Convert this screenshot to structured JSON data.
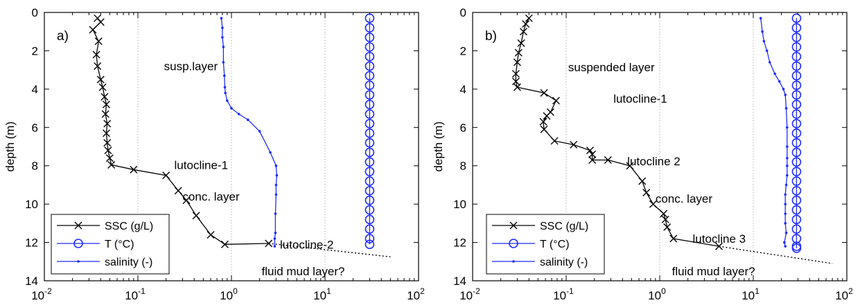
{
  "colors": {
    "ssc": "#000000",
    "temperature": "#1f2bff",
    "salinity": "#1f2bff"
  },
  "x_tick_labels": [
    {
      "base": "10",
      "exp": "-2"
    },
    {
      "base": "10",
      "exp": "-1"
    },
    {
      "base": "10",
      "exp": "0"
    },
    {
      "base": "10",
      "exp": "1"
    },
    {
      "base": "10",
      "exp": "2"
    }
  ],
  "chart_data": [
    {
      "type": "line",
      "panel_label": "a)",
      "ylabel": "depth (m)",
      "x_scale": "log",
      "xlim": [
        0.01,
        100
      ],
      "ylim": [
        0,
        14
      ],
      "y_inverted": true,
      "grid": "x-major-only",
      "legend_position": "bottom-left",
      "y_ticks": [
        0,
        2,
        4,
        6,
        8,
        10,
        12,
        14
      ],
      "series": [
        {
          "name": "SSC (g/L)",
          "marker": "x",
          "color": "#000000",
          "x": [
            0.037,
            0.04,
            0.033,
            0.038,
            0.036,
            0.037,
            0.04,
            0.042,
            0.044,
            0.046,
            0.045,
            0.047,
            0.046,
            0.047,
            0.048,
            0.05,
            0.052,
            0.09,
            0.2,
            0.27,
            0.33,
            0.42,
            0.6,
            0.85,
            2.5
          ],
          "y": [
            0.3,
            0.5,
            0.9,
            1.5,
            2.2,
            2.8,
            3.5,
            3.9,
            4.4,
            4.8,
            5.3,
            5.8,
            6.3,
            6.8,
            7.2,
            7.6,
            7.95,
            8.2,
            8.5,
            9.3,
            9.8,
            10.6,
            11.6,
            12.1,
            12.05
          ]
        },
        {
          "name": "T (°C)",
          "marker": "o",
          "color": "#1f2bff",
          "x": [
            30,
            30,
            30,
            30,
            30,
            30,
            30,
            30,
            30,
            30,
            30,
            30,
            30,
            30,
            30,
            30,
            30,
            30,
            30,
            30,
            30,
            30,
            30,
            30,
            30
          ],
          "y": [
            0.3,
            0.8,
            1.3,
            1.8,
            2.3,
            2.8,
            3.3,
            3.8,
            4.3,
            4.8,
            5.3,
            5.8,
            6.3,
            6.8,
            7.3,
            7.8,
            8.3,
            8.8,
            9.3,
            9.8,
            10.3,
            10.8,
            11.3,
            11.8,
            12.1
          ]
        },
        {
          "name": "salinity (-)",
          "marker": ".",
          "color": "#1f2bff",
          "x": [
            0.78,
            0.8,
            0.8,
            0.82,
            0.82,
            0.84,
            0.85,
            0.86,
            0.9,
            1.0,
            1.2,
            1.5,
            2.0,
            2.6,
            3.0,
            3.05,
            3.0,
            3.0,
            2.95,
            2.95,
            2.9,
            2.9
          ],
          "y": [
            0.3,
            0.8,
            1.3,
            1.8,
            2.6,
            3.3,
            3.9,
            4.2,
            4.6,
            5.0,
            5.3,
            5.6,
            6.2,
            7.3,
            8.0,
            8.5,
            9.0,
            9.5,
            10.5,
            11.5,
            11.8,
            12.2
          ]
        }
      ],
      "extrapolation_line": {
        "x": [
          2.5,
          50
        ],
        "y": [
          12.05,
          12.75
        ]
      },
      "annotations": [
        {
          "text": "susp.layer",
          "x": 0.19,
          "y": 2.8
        },
        {
          "text": "lutocline-1",
          "x": 0.245,
          "y": 7.95
        },
        {
          "text": "conc. layer",
          "x": 0.3,
          "y": 9.6
        },
        {
          "text": "lutocline-2",
          "x": 3.3,
          "y": 12.1
        },
        {
          "text": "fluid mud layer?",
          "x": 2.1,
          "y": 13.5
        }
      ]
    },
    {
      "type": "line",
      "panel_label": "b)",
      "ylabel": "depth (m)",
      "x_scale": "log",
      "xlim": [
        0.01,
        100
      ],
      "ylim": [
        0,
        14
      ],
      "y_inverted": true,
      "grid": "x-major-only",
      "legend_position": "bottom-left",
      "y_ticks": [
        0,
        2,
        4,
        6,
        8,
        10,
        12,
        14
      ],
      "series": [
        {
          "name": "SSC (g/L)",
          "marker": "x",
          "color": "#000000",
          "x": [
            0.04,
            0.037,
            0.035,
            0.033,
            0.031,
            0.03,
            0.029,
            0.029,
            0.03,
            0.058,
            0.078,
            0.068,
            0.062,
            0.057,
            0.058,
            0.075,
            0.12,
            0.18,
            0.19,
            0.19,
            0.28,
            0.48,
            0.65,
            0.72,
            0.85,
            1.1,
            1.15,
            1.2,
            1.4,
            4.3
          ],
          "y": [
            0.3,
            0.6,
            1.0,
            1.6,
            2.1,
            2.6,
            3.2,
            3.6,
            3.9,
            4.2,
            4.6,
            5.2,
            5.4,
            5.7,
            6.1,
            6.7,
            6.9,
            7.2,
            7.4,
            7.7,
            7.7,
            8.0,
            8.8,
            9.4,
            10.0,
            10.5,
            10.8,
            11.2,
            11.8,
            12.2
          ]
        },
        {
          "name": "T (°C)",
          "marker": "o",
          "color": "#1f2bff",
          "x": [
            29,
            29,
            29,
            29,
            29,
            29,
            29,
            29,
            29,
            29,
            29,
            29,
            29,
            29,
            29,
            29,
            29,
            29,
            29,
            29,
            29,
            29,
            29,
            29,
            29,
            29
          ],
          "y": [
            0.3,
            0.8,
            1.3,
            1.8,
            2.3,
            2.8,
            3.3,
            3.8,
            4.3,
            4.8,
            5.3,
            5.8,
            6.3,
            6.8,
            7.3,
            7.8,
            8.3,
            8.8,
            9.3,
            9.8,
            10.3,
            10.8,
            11.3,
            11.8,
            12.2,
            12.3
          ]
        },
        {
          "name": "salinity (-)",
          "marker": ".",
          "color": "#1f2bff",
          "x": [
            12,
            12.5,
            13,
            14,
            15,
            17,
            19,
            21,
            22,
            22.5,
            23,
            23,
            23,
            23,
            23,
            22.5,
            22,
            22,
            22,
            22,
            22.5,
            21.5,
            22
          ],
          "y": [
            0.3,
            1.0,
            1.5,
            2.0,
            2.6,
            3.2,
            3.6,
            4.0,
            4.3,
            5.0,
            6.0,
            7.0,
            7.6,
            8.0,
            8.5,
            9.0,
            9.5,
            10.0,
            10.5,
            11.0,
            11.5,
            12.0,
            12.2
          ]
        }
      ],
      "extrapolation_line": {
        "x": [
          4.3,
          70
        ],
        "y": [
          12.2,
          13.1
        ]
      },
      "annotations": [
        {
          "text": "suspended layer",
          "x": 0.105,
          "y": 2.85
        },
        {
          "text": "lutocline-1",
          "x": 0.32,
          "y": 4.5
        },
        {
          "text": "lutocline 2",
          "x": 0.45,
          "y": 7.75
        },
        {
          "text": "conc. layer",
          "x": 0.9,
          "y": 9.7
        },
        {
          "text": "lutocline 3",
          "x": 2.25,
          "y": 11.8
        },
        {
          "text": "fluid mud layer?",
          "x": 1.35,
          "y": 13.5
        }
      ]
    }
  ]
}
